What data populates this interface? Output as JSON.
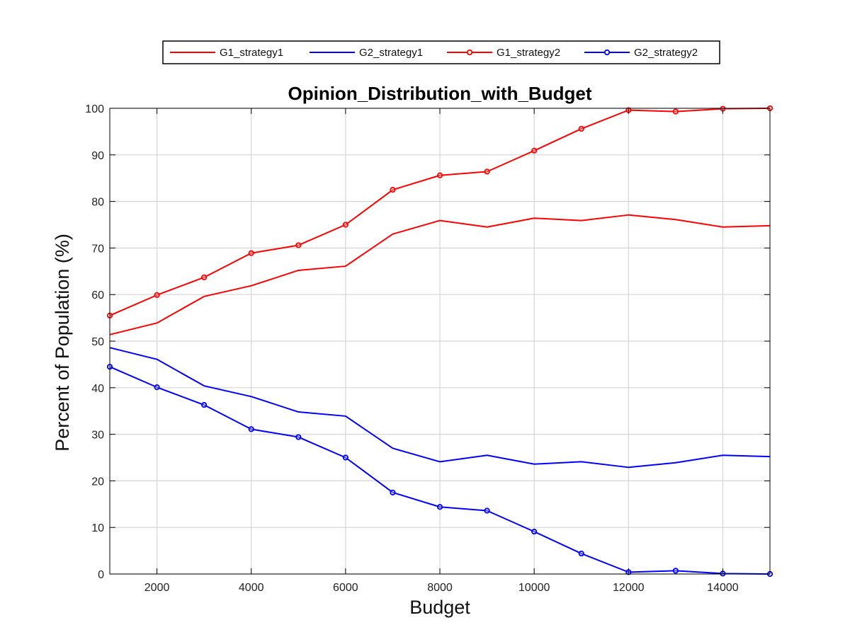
{
  "chart_data": {
    "type": "line",
    "title": "Opinion_Distribution_with_Budget",
    "xlabel": "Budget",
    "ylabel": "Percent of Population (%)",
    "xlim": [
      1000,
      15000
    ],
    "ylim": [
      0,
      100
    ],
    "xticks": [
      2000,
      4000,
      6000,
      8000,
      10000,
      12000,
      14000
    ],
    "yticks": [
      0,
      10,
      20,
      30,
      40,
      50,
      60,
      70,
      80,
      90,
      100
    ],
    "grid": true,
    "legend_position": "top (above plot)",
    "x": [
      1000,
      2000,
      3000,
      4000,
      5000,
      6000,
      7000,
      8000,
      9000,
      10000,
      11000,
      12000,
      13000,
      14000,
      15000
    ],
    "series": [
      {
        "name": "G1_strategy1",
        "color": "#ff0000",
        "marker": "none",
        "values": [
          51.4,
          53.9,
          59.6,
          61.9,
          65.2,
          66.1,
          73.0,
          75.9,
          74.5,
          76.4,
          75.9,
          77.1,
          76.1,
          74.5,
          74.8
        ]
      },
      {
        "name": "G2_strategy1",
        "color": "#0000ff",
        "marker": "none",
        "values": [
          48.6,
          46.1,
          40.4,
          38.1,
          34.8,
          33.9,
          27.0,
          24.1,
          25.5,
          23.6,
          24.1,
          22.9,
          23.9,
          25.5,
          25.2
        ]
      },
      {
        "name": "G1_strategy2",
        "color": "#ff0000",
        "marker": "circle",
        "values": [
          55.5,
          59.9,
          63.7,
          68.9,
          70.6,
          75.0,
          82.5,
          85.6,
          86.4,
          90.9,
          95.6,
          99.6,
          99.3,
          99.9,
          100.0
        ]
      },
      {
        "name": "G2_strategy2",
        "color": "#0000ff",
        "marker": "circle",
        "values": [
          44.5,
          40.1,
          36.3,
          31.1,
          29.4,
          25.0,
          17.5,
          14.4,
          13.6,
          9.1,
          4.4,
          0.4,
          0.7,
          0.1,
          0.0
        ]
      }
    ]
  }
}
